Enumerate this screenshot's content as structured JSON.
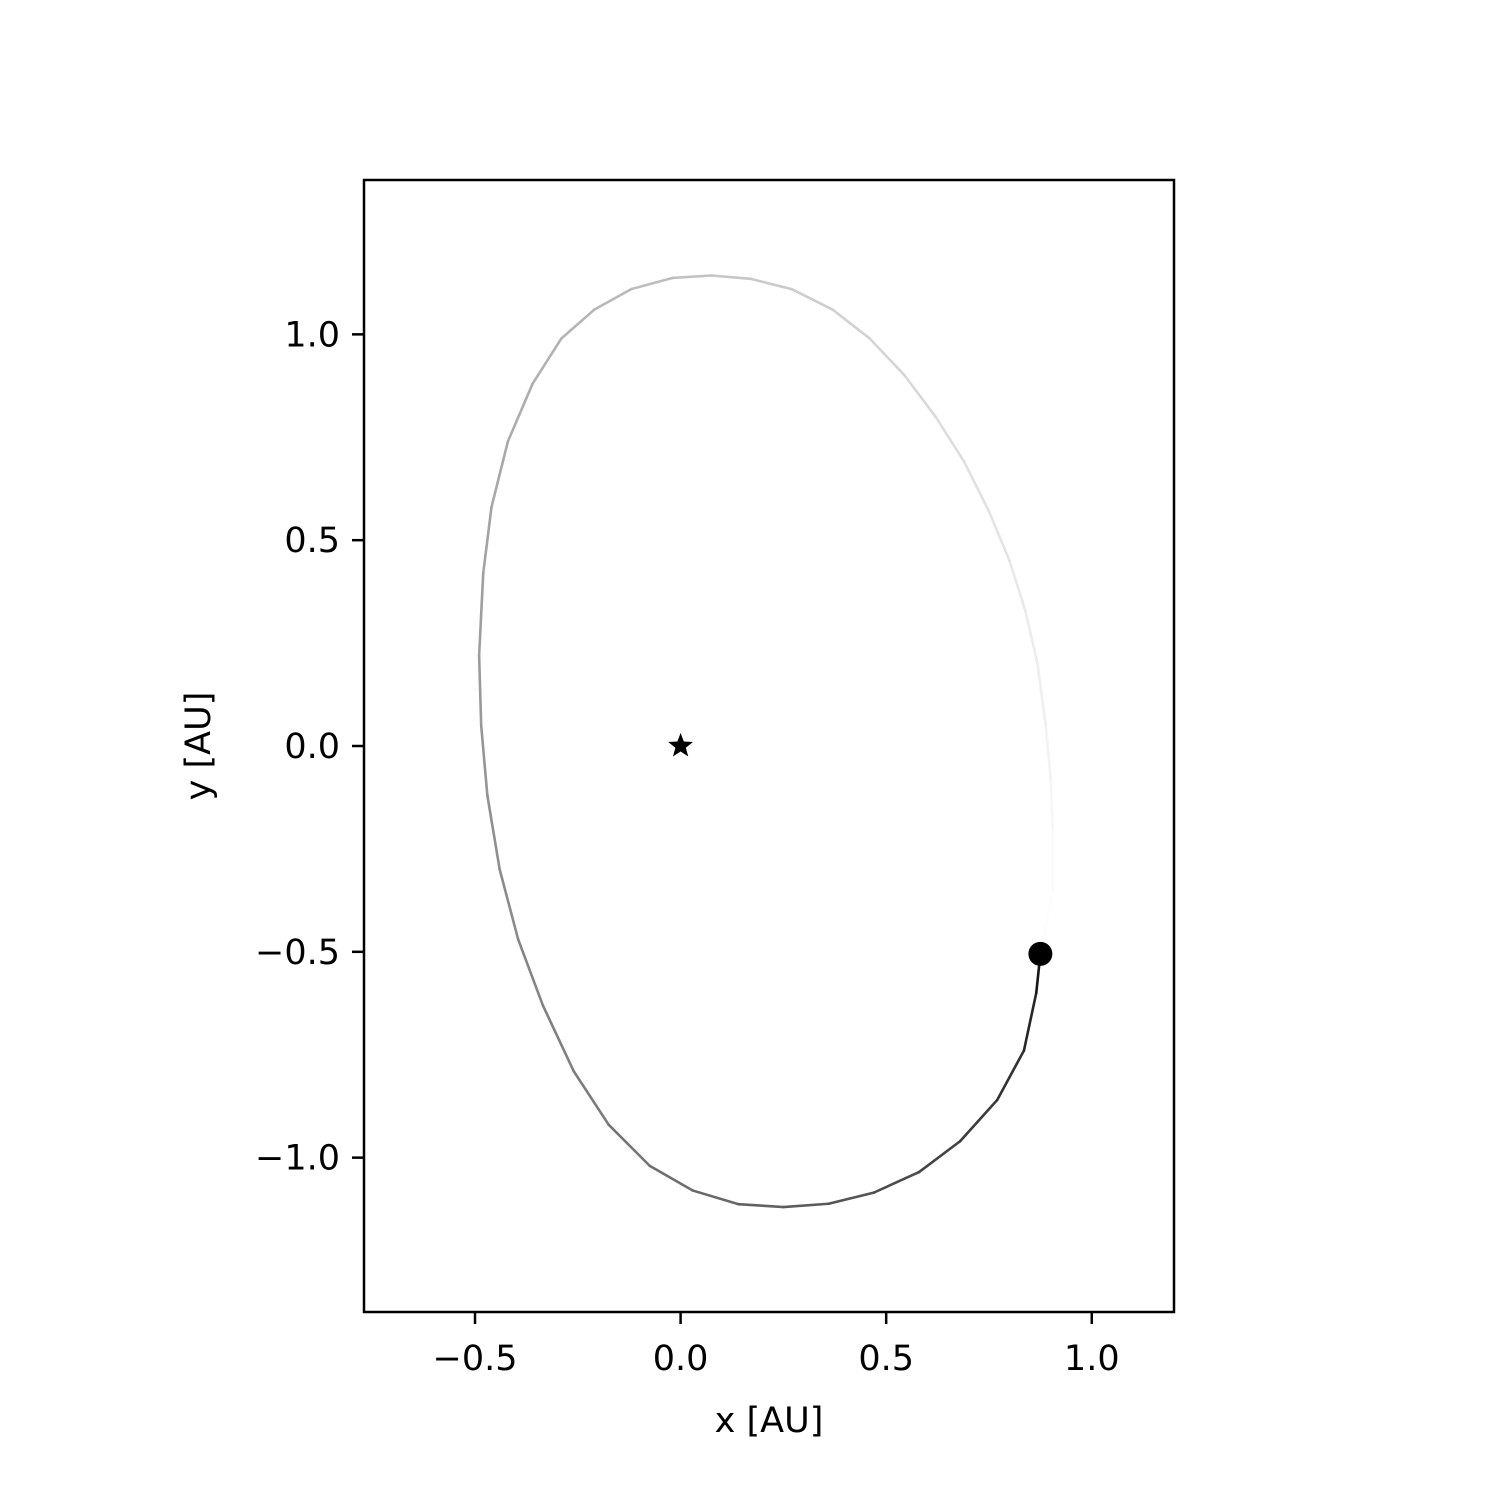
{
  "chart_data": {
    "type": "line",
    "title": "",
    "xlabel": "x [AU]",
    "ylabel": "y [AU]",
    "xlim": [
      -0.77,
      1.2
    ],
    "ylim": [
      -1.375,
      1.375
    ],
    "xticks": [
      -0.5,
      0.0,
      0.5,
      1.0
    ],
    "xtick_labels": [
      "−0.5",
      "0.0",
      "0.5",
      "1.0"
    ],
    "yticks": [
      -1.0,
      -0.5,
      0.0,
      0.5,
      1.0
    ],
    "ytick_labels": [
      "−1.0",
      "−0.5",
      "0.0",
      "0.5",
      "1.0"
    ],
    "grid": false,
    "aspect": "equal",
    "series": [
      {
        "kind": "orbit-trail",
        "points": [
          [
            0.875,
            -0.505
          ],
          [
            0.905,
            -0.35
          ],
          [
            0.905,
            -0.2
          ],
          [
            0.9,
            -0.08
          ],
          [
            0.888,
            0.05
          ],
          [
            0.868,
            0.2
          ],
          [
            0.838,
            0.33
          ],
          [
            0.8,
            0.45
          ],
          [
            0.75,
            0.57
          ],
          [
            0.69,
            0.69
          ],
          [
            0.62,
            0.8
          ],
          [
            0.545,
            0.9
          ],
          [
            0.46,
            0.99
          ],
          [
            0.37,
            1.06
          ],
          [
            0.27,
            1.11
          ],
          [
            0.17,
            1.135
          ],
          [
            0.075,
            1.143
          ],
          [
            -0.02,
            1.137
          ],
          [
            -0.12,
            1.11
          ],
          [
            -0.21,
            1.06
          ],
          [
            -0.29,
            0.99
          ],
          [
            -0.36,
            0.88
          ],
          [
            -0.42,
            0.74
          ],
          [
            -0.46,
            0.58
          ],
          [
            -0.48,
            0.42
          ],
          [
            -0.49,
            0.22
          ],
          [
            -0.485,
            0.05
          ],
          [
            -0.47,
            -0.12
          ],
          [
            -0.44,
            -0.3
          ],
          [
            -0.395,
            -0.47
          ],
          [
            -0.335,
            -0.63
          ],
          [
            -0.26,
            -0.79
          ],
          [
            -0.175,
            -0.92
          ],
          [
            -0.075,
            -1.02
          ],
          [
            0.03,
            -1.08
          ],
          [
            0.14,
            -1.113
          ],
          [
            0.25,
            -1.12
          ],
          [
            0.36,
            -1.112
          ],
          [
            0.47,
            -1.085
          ],
          [
            0.58,
            -1.035
          ],
          [
            0.68,
            -0.96
          ],
          [
            0.77,
            -0.86
          ],
          [
            0.835,
            -0.74
          ],
          [
            0.865,
            -0.6
          ],
          [
            0.875,
            -0.505
          ]
        ],
        "color_fade": [
          "#ffffff",
          "#000000"
        ]
      },
      {
        "kind": "star-marker",
        "x": 0.0,
        "y": 0.0,
        "color": "#000000"
      },
      {
        "kind": "planet-marker",
        "x": 0.875,
        "y": -0.505,
        "color": "#000000"
      }
    ]
  }
}
